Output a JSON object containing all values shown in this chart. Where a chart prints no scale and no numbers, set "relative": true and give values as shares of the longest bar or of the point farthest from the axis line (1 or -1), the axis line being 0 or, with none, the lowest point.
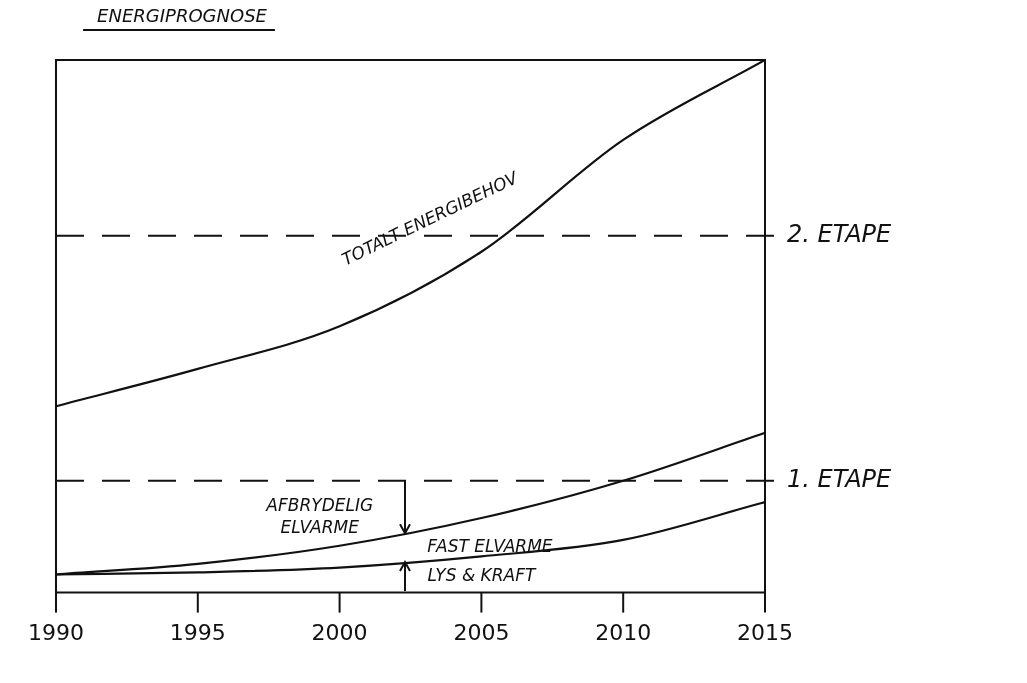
{
  "chart_data": {
    "type": "line",
    "title": "ENERGIPROGNOSE",
    "relative": true,
    "x": [
      1990,
      1995,
      2000,
      2005,
      2010,
      2015
    ],
    "xlim": [
      1990,
      2015
    ],
    "xticks": [
      1990,
      1995,
      2000,
      2005,
      2010,
      2015
    ],
    "series": [
      {
        "color": "#111111",
        "values": [
          0.35,
          0.42,
          0.5,
          0.64,
          0.85,
          1
        ]
      },
      {
        "color": "#111111",
        "values": [
          0.034,
          0.054,
          0.088,
          0.14,
          0.21,
          0.3
        ]
      },
      {
        "color": "#111111",
        "values": [
          0.034,
          0.038,
          0.047,
          0.068,
          0.099,
          0.17
        ]
      }
    ],
    "ref_lines": [
      {
        "axis": "y",
        "value": 0.67,
        "label": "2. ETAPE",
        "line_style": "dashed"
      },
      {
        "axis": "y",
        "value": 0.21,
        "label": "1. ETAPE",
        "line_style": "dashed"
      }
    ],
    "annotations": [
      "TOTALT ENERGIBEHOV",
      "AFBRYDELIG ELVARME",
      "FAST ELVARME",
      "LYS & KRAFT"
    ],
    "grid": false,
    "legend": false,
    "marker": "none",
    "line_style": "solid"
  }
}
